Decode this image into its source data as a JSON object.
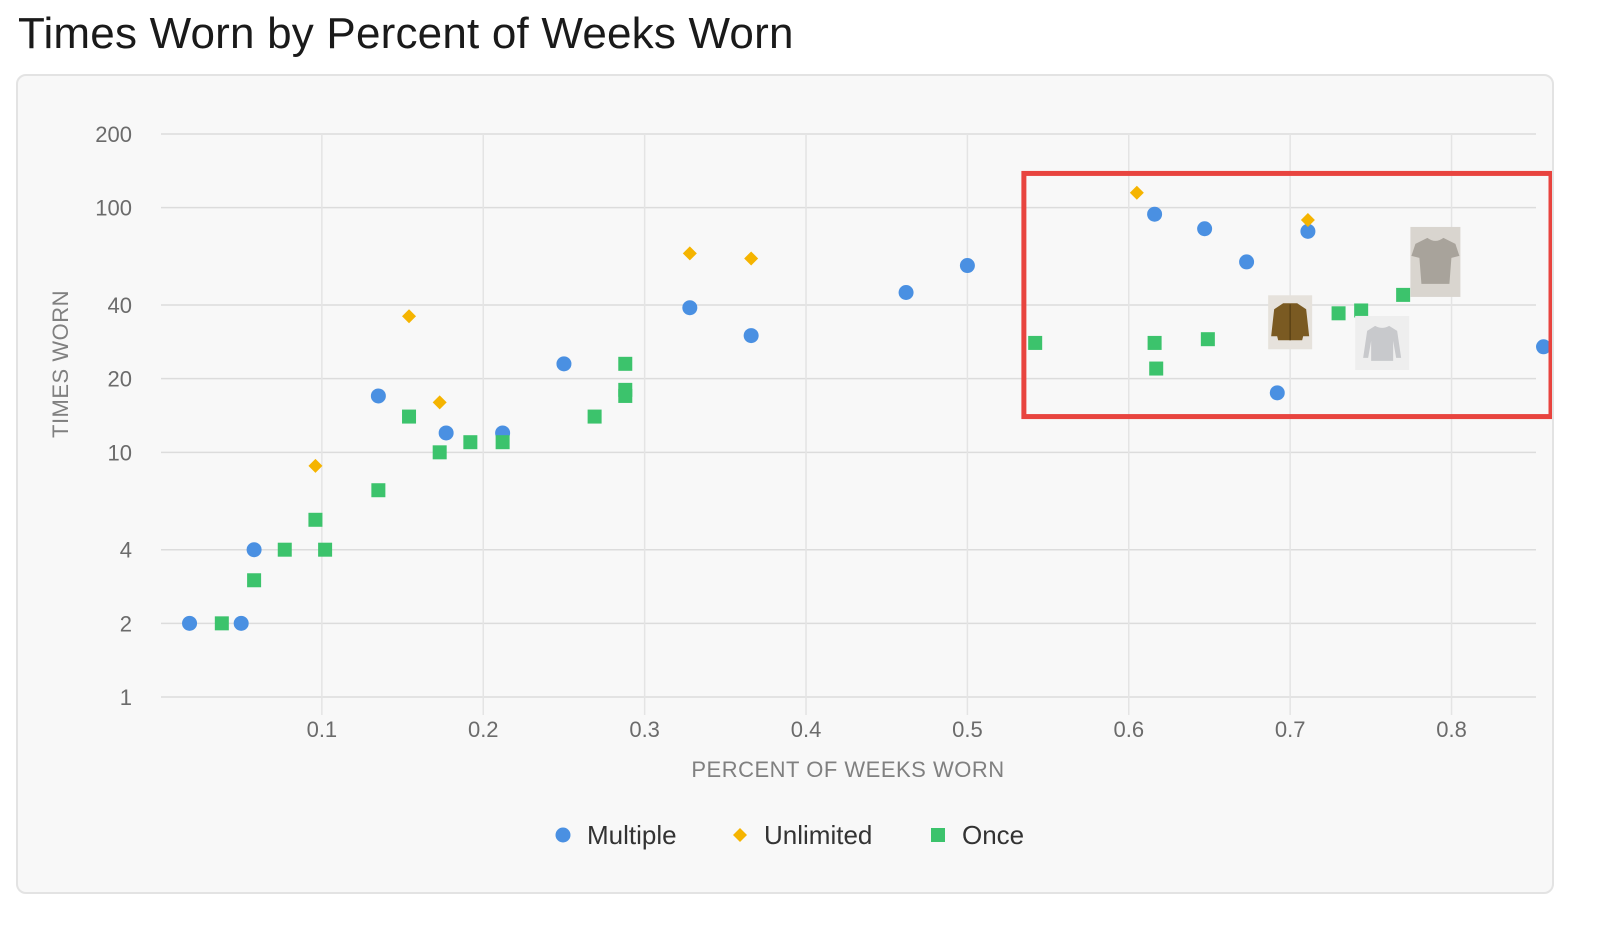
{
  "title": "Times Worn by Percent of Weeks Worn",
  "colors": {
    "Multiple": "#4a90e2",
    "Unlimited": "#f5b400",
    "Once": "#3cc36c",
    "grid": "#dcdcdc",
    "highlight": "#e8443f"
  },
  "chart_data": {
    "type": "scatter",
    "xlabel": "PERCENT OF WEEKS WORN",
    "ylabel": "TIMES WORN",
    "xlim": [
      0.01,
      0.87
    ],
    "ylim": [
      1,
      200
    ],
    "y_scale": "log",
    "x_ticks": [
      0.1,
      0.2,
      0.3,
      0.4,
      0.5,
      0.6,
      0.7,
      0.8
    ],
    "x_tick_labels": [
      "0.1",
      "0.2",
      "0.3",
      "0.4",
      "0.5",
      "0.6",
      "0.7",
      "0.8"
    ],
    "y_ticks": [
      1,
      2,
      4,
      10,
      20,
      40,
      100,
      200
    ],
    "y_tick_labels": [
      "1",
      "2",
      "4",
      "10",
      "20",
      "40",
      "100",
      "200"
    ],
    "grid": true,
    "legend_position": "bottom-center",
    "series": [
      {
        "name": "Multiple",
        "marker": "circle",
        "points": [
          [
            0.018,
            2
          ],
          [
            0.05,
            2
          ],
          [
            0.058,
            4
          ],
          [
            0.135,
            17
          ],
          [
            0.177,
            12
          ],
          [
            0.212,
            12
          ],
          [
            0.25,
            23
          ],
          [
            0.328,
            39
          ],
          [
            0.366,
            30
          ],
          [
            0.462,
            45
          ],
          [
            0.5,
            58
          ],
          [
            0.616,
            94
          ],
          [
            0.647,
            82
          ],
          [
            0.673,
            60
          ],
          [
            0.711,
            80
          ],
          [
            0.692,
            17.5
          ],
          [
            0.857,
            27
          ]
        ]
      },
      {
        "name": "Unlimited",
        "marker": "diamond",
        "points": [
          [
            0.096,
            8.8
          ],
          [
            0.154,
            36
          ],
          [
            0.173,
            16
          ],
          [
            0.328,
            65
          ],
          [
            0.366,
            62
          ],
          [
            0.605,
            115
          ],
          [
            0.711,
            89
          ]
        ]
      },
      {
        "name": "Once",
        "marker": "square",
        "points": [
          [
            0.038,
            2
          ],
          [
            0.058,
            3
          ],
          [
            0.077,
            4
          ],
          [
            0.096,
            5.3
          ],
          [
            0.102,
            4
          ],
          [
            0.135,
            7
          ],
          [
            0.154,
            14
          ],
          [
            0.173,
            10
          ],
          [
            0.192,
            11
          ],
          [
            0.212,
            11
          ],
          [
            0.269,
            14
          ],
          [
            0.288,
            23
          ],
          [
            0.288,
            18
          ],
          [
            0.288,
            17
          ],
          [
            0.542,
            28
          ],
          [
            0.616,
            28
          ],
          [
            0.617,
            22
          ],
          [
            0.649,
            29
          ],
          [
            0.73,
            37
          ],
          [
            0.744,
            38
          ],
          [
            0.77,
            44
          ]
        ]
      }
    ],
    "thumbnails": [
      {
        "icon": "tshirt-thumbnail-icon",
        "x": 0.79,
        "y": 60
      },
      {
        "icon": "jacket-thumbnail-icon",
        "x": 0.7,
        "y": 34
      },
      {
        "icon": "sweater-thumbnail-icon",
        "x": 0.757,
        "y": 28
      }
    ],
    "highlight_region": {
      "x": [
        0.535,
        0.87
      ],
      "y": [
        14,
        138
      ]
    }
  }
}
